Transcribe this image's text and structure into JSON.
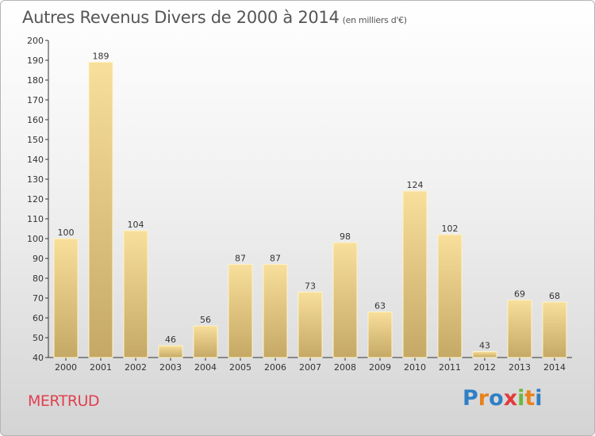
{
  "header": {
    "title": "Autres Revenus Divers de 2000 à 2014",
    "subtitle": "(en milliers d'€)"
  },
  "footer": {
    "town": "MERTRUD",
    "brand": "Proxiti",
    "brand_colors": [
      "#2f7fc4",
      "#e8821c",
      "#2f7fc4",
      "#e23a3a",
      "#6ab83f",
      "#e8821c",
      "#2f7fc4"
    ]
  },
  "chart_data": {
    "type": "bar",
    "title": "Autres Revenus Divers de 2000 à 2014",
    "subtitle": "(en milliers d'€)",
    "xlabel": "",
    "ylabel": "",
    "categories": [
      "2000",
      "2001",
      "2002",
      "2003",
      "2004",
      "2005",
      "2006",
      "2007",
      "2008",
      "2009",
      "2010",
      "2011",
      "2012",
      "2013",
      "2014"
    ],
    "values": [
      100,
      189,
      104,
      46,
      56,
      87,
      87,
      73,
      98,
      63,
      124,
      102,
      43,
      69,
      68
    ],
    "ylim": [
      40,
      200
    ],
    "yticks": [
      40,
      50,
      60,
      70,
      80,
      90,
      100,
      110,
      120,
      130,
      140,
      150,
      160,
      170,
      180,
      190,
      200
    ],
    "grid": false,
    "legend": "none",
    "bar_colors": {
      "light": "#f8df9b",
      "dark": "#c5a865",
      "edge": "#fff3c8"
    }
  }
}
